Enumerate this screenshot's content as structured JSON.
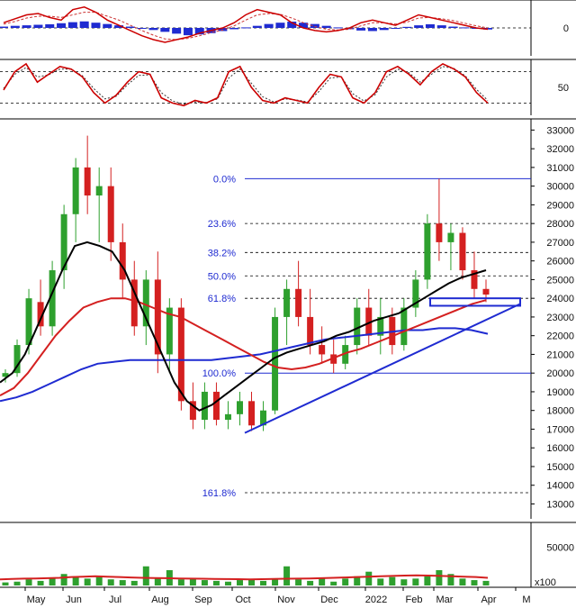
{
  "chart_data": [
    {
      "type": "line",
      "panel": "macd",
      "y_ticks": [
        0
      ],
      "ylim": [
        -1,
        1
      ],
      "histogram": [
        0.05,
        0.08,
        0.1,
        0.12,
        0.14,
        0.18,
        0.22,
        0.25,
        0.2,
        0.15,
        0.1,
        0.05,
        -0.02,
        -0.08,
        -0.15,
        -0.22,
        -0.28,
        -0.25,
        -0.2,
        -0.12,
        -0.05,
        0.02,
        0.08,
        0.15,
        0.2,
        0.24,
        0.2,
        0.15,
        0.08,
        0.02,
        -0.05,
        -0.1,
        -0.12,
        -0.08,
        -0.02,
        0.04,
        0.1,
        0.14,
        0.1,
        0.05,
        0.02,
        -0.03,
        -0.06
      ],
      "series": [
        {
          "values": [
            0.2,
            0.35,
            0.5,
            0.55,
            0.4,
            0.3,
            0.7,
            0.8,
            0.6,
            0.3,
            0.1,
            -0.1,
            -0.3,
            -0.45,
            -0.55,
            -0.45,
            -0.35,
            -0.2,
            -0.1,
            0.0,
            0.2,
            0.5,
            0.7,
            0.6,
            0.5,
            0.2,
            0.0,
            -0.1,
            -0.15,
            -0.1,
            0.0,
            0.2,
            0.3,
            0.2,
            0.1,
            0.3,
            0.5,
            0.4,
            0.3,
            0.2,
            0.1,
            0.0,
            -0.05
          ]
        },
        {
          "values": [
            0.15,
            0.25,
            0.38,
            0.45,
            0.45,
            0.4,
            0.5,
            0.6,
            0.6,
            0.45,
            0.3,
            0.1,
            -0.1,
            -0.28,
            -0.42,
            -0.45,
            -0.4,
            -0.3,
            -0.18,
            -0.08,
            0.08,
            0.3,
            0.5,
            0.55,
            0.52,
            0.38,
            0.2,
            0.05,
            -0.05,
            -0.08,
            -0.05,
            0.08,
            0.2,
            0.2,
            0.15,
            0.22,
            0.38,
            0.4,
            0.35,
            0.28,
            0.18,
            0.08,
            0.0
          ]
        }
      ]
    },
    {
      "type": "line",
      "panel": "oscillator",
      "y_ticks": [
        50
      ],
      "ylim": [
        0,
        100
      ],
      "series": [
        {
          "values": [
            45,
            80,
            95,
            60,
            75,
            90,
            85,
            70,
            40,
            20,
            35,
            60,
            80,
            75,
            30,
            20,
            15,
            25,
            20,
            30,
            80,
            90,
            50,
            25,
            20,
            30,
            25,
            20,
            50,
            75,
            70,
            30,
            20,
            40,
            80,
            90,
            75,
            55,
            80,
            95,
            85,
            70,
            40,
            20
          ]
        },
        {
          "values": [
            48,
            75,
            88,
            70,
            74,
            85,
            85,
            72,
            48,
            28,
            33,
            55,
            73,
            74,
            40,
            24,
            18,
            22,
            21,
            28,
            68,
            85,
            58,
            32,
            22,
            28,
            26,
            22,
            42,
            68,
            70,
            38,
            24,
            36,
            70,
            85,
            78,
            60,
            75,
            90,
            86,
            72,
            46,
            25
          ]
        }
      ]
    },
    {
      "type": "line",
      "panel": "price",
      "y_ticks": [
        13000,
        14000,
        15000,
        16000,
        17000,
        18000,
        19000,
        20000,
        21000,
        22000,
        23000,
        24000,
        25000,
        26000,
        27000,
        28000,
        29000,
        30000,
        31000,
        32000,
        33000
      ],
      "ylim": [
        12300,
        33500
      ],
      "x_labels": [
        "May",
        "Jun",
        "Jul",
        "Aug",
        "Sep",
        "Oct",
        "Nov",
        "Dec",
        "2022",
        "Feb",
        "Mar",
        "Apr",
        "M"
      ],
      "fibonacci": [
        {
          "label": "0.0%",
          "value": 30400
        },
        {
          "label": "23.6%",
          "value": 28000
        },
        {
          "label": "38.2%",
          "value": 26450
        },
        {
          "label": "50.0%",
          "value": 25200
        },
        {
          "label": "61.8%",
          "value": 24000
        },
        {
          "label": "100.0%",
          "value": 20000
        },
        {
          "label": "161.8%",
          "value": 13600
        }
      ],
      "candles": [
        [
          0,
          19800,
          20200,
          19500,
          20000
        ],
        [
          1,
          20000,
          21800,
          19800,
          21500
        ],
        [
          2,
          21500,
          24500,
          21000,
          24000
        ],
        [
          3,
          23800,
          25000,
          22000,
          22500
        ],
        [
          4,
          22500,
          26000,
          22000,
          25500
        ],
        [
          5,
          25500,
          29000,
          24500,
          28500
        ],
        [
          6,
          28500,
          31500,
          27000,
          31000
        ],
        [
          7,
          31000,
          32700,
          28500,
          29500
        ],
        [
          8,
          29500,
          31000,
          27000,
          30000
        ],
        [
          9,
          30000,
          31000,
          26000,
          27000
        ],
        [
          10,
          27000,
          28000,
          24000,
          25000
        ],
        [
          11,
          25000,
          26000,
          22000,
          22500
        ],
        [
          12,
          22500,
          25500,
          21500,
          25000
        ],
        [
          13,
          25000,
          26500,
          20000,
          21000
        ],
        [
          14,
          21000,
          24000,
          20000,
          23500
        ],
        [
          15,
          23500,
          24000,
          18000,
          18500
        ],
        [
          16,
          18500,
          19500,
          17000,
          17500
        ],
        [
          17,
          17500,
          19500,
          17000,
          19000
        ],
        [
          18,
          19000,
          19500,
          17200,
          17500
        ],
        [
          19,
          17500,
          18500,
          17000,
          17800
        ],
        [
          20,
          17800,
          19000,
          17200,
          18500
        ],
        [
          21,
          18500,
          19000,
          16900,
          17200
        ],
        [
          22,
          17200,
          18500,
          16900,
          18000
        ],
        [
          23,
          18000,
          23500,
          17800,
          23000
        ],
        [
          24,
          23000,
          25000,
          21500,
          24500
        ],
        [
          25,
          24500,
          26000,
          22500,
          23000
        ],
        [
          26,
          23000,
          24500,
          21000,
          21500
        ],
        [
          27,
          21500,
          22500,
          20500,
          21000
        ],
        [
          28,
          21000,
          21800,
          20000,
          20500
        ],
        [
          29,
          20500,
          22000,
          20200,
          21500
        ],
        [
          30,
          21500,
          24000,
          21000,
          23500
        ],
        [
          31,
          23500,
          24500,
          21500,
          22000
        ],
        [
          32,
          22000,
          24000,
          21000,
          23000
        ],
        [
          33,
          23000,
          23500,
          21000,
          21500
        ],
        [
          34,
          21500,
          24000,
          21200,
          23500
        ],
        [
          35,
          23500,
          25500,
          23000,
          25000
        ],
        [
          36,
          25000,
          28500,
          24500,
          28000
        ],
        [
          37,
          28000,
          30400,
          26000,
          27000
        ],
        [
          38,
          27000,
          28000,
          25500,
          27500
        ],
        [
          39,
          27500,
          27800,
          25000,
          25500
        ],
        [
          40,
          25500,
          26500,
          24000,
          24500
        ],
        [
          41,
          24500,
          25000,
          23800,
          24200
        ]
      ],
      "series": [
        {
          "values": [
            19500,
            20000,
            21000,
            22500,
            24000,
            25500,
            26800,
            27000,
            26800,
            26500,
            25500,
            24000,
            22500,
            21000,
            19500,
            18500,
            18000,
            18300,
            18800,
            19300,
            19800,
            20300,
            20800,
            21100,
            21300,
            21500,
            21700,
            22000,
            22200,
            22500,
            22800,
            23000,
            23200,
            23600,
            24000,
            24400,
            24800,
            25100,
            25300,
            25500
          ]
        },
        {
          "values": [
            18800,
            19200,
            20000,
            21000,
            22000,
            22800,
            23500,
            23800,
            24000,
            24000,
            23800,
            23500,
            23200,
            23000,
            22600,
            22200,
            21800,
            21400,
            21000,
            20600,
            20300,
            20200,
            20300,
            20500,
            20800,
            21100,
            21300,
            21600,
            21900,
            22200,
            22500,
            22800,
            23100,
            23400,
            23700,
            23900
          ]
        },
        {
          "values": [
            18500,
            18700,
            19000,
            19400,
            19800,
            20200,
            20500,
            20600,
            20700,
            20700,
            20700,
            20700,
            20700,
            20700,
            20800,
            20900,
            21000,
            21200,
            21400,
            21600,
            21800,
            21900,
            22000,
            22100,
            22200,
            22300,
            22300,
            22400,
            22400,
            22300,
            22100
          ]
        }
      ],
      "trendline": {
        "x": [
          0,
          1
        ],
        "y": [
          16800,
          23700
        ]
      },
      "support_box": {
        "y": [
          23600,
          24000
        ]
      }
    },
    {
      "type": "bar",
      "panel": "volume",
      "y_ticks": [
        50000
      ],
      "y_multiplier": "x100",
      "ylim": [
        0,
        80000
      ],
      "values": [
        4000,
        5000,
        8000,
        6000,
        10000,
        15000,
        12000,
        9000,
        11000,
        8000,
        7000,
        6000,
        25000,
        10000,
        20000,
        8000,
        9000,
        7000,
        6000,
        5000,
        7000,
        8000,
        6000,
        9000,
        25000,
        8000,
        6000,
        10000,
        5000,
        9000,
        12000,
        18000,
        9000,
        11000,
        8000,
        9000,
        12000,
        20000,
        15000,
        9000,
        7000,
        6000
      ],
      "series": [
        {
          "values": [
            8000,
            8500,
            9000,
            9200,
            9500,
            10000,
            11000,
            11500,
            12000,
            11500,
            11000,
            10500,
            10000,
            9800,
            9500,
            9200,
            9000,
            8800,
            8600,
            8400,
            8200,
            8000,
            8200,
            8500,
            8800,
            9000,
            9200,
            9500,
            10000,
            10500,
            11000,
            11500,
            12000,
            12500,
            13000,
            13200,
            13000,
            12500,
            12000,
            11500,
            11000,
            10000
          ]
        }
      ]
    }
  ]
}
